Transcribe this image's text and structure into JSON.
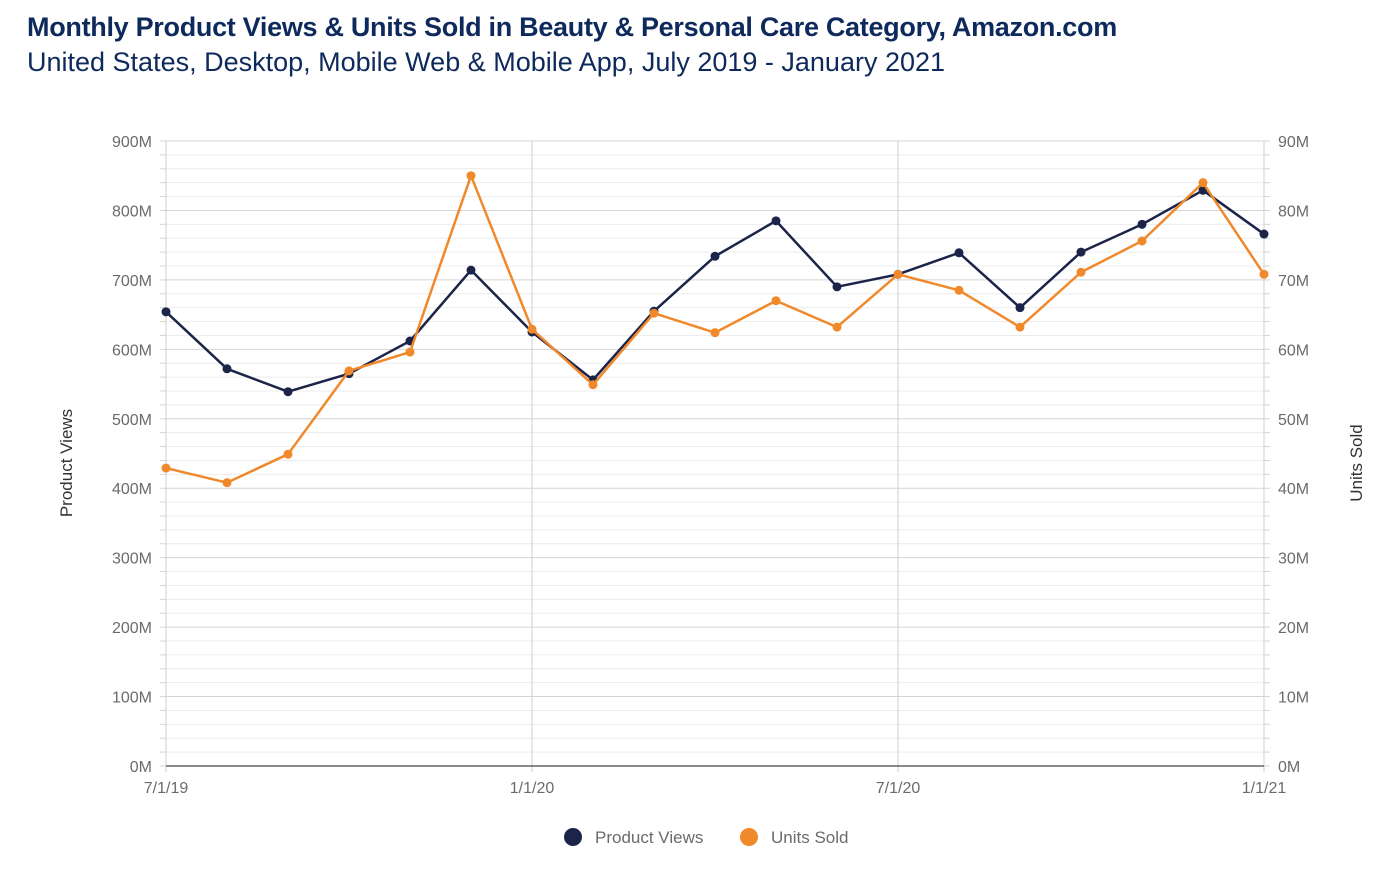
{
  "chart_data": {
    "type": "line",
    "title": "Monthly Product Views & Units Sold in Beauty & Personal Care Category, Amazon.com",
    "subtitle": "United States, Desktop, Mobile Web & Mobile App, July 2019 - January 2021",
    "xlabel": "",
    "ylabel": "Product Views",
    "y2label": "Units Sold",
    "x": [
      "2019-07",
      "2019-08",
      "2019-09",
      "2019-10",
      "2019-11",
      "2019-12",
      "2020-01",
      "2020-02",
      "2020-03",
      "2020-04",
      "2020-05",
      "2020-06",
      "2020-07",
      "2020-08",
      "2020-09",
      "2020-10",
      "2020-11",
      "2020-12",
      "2021-01"
    ],
    "x_ticks": [
      "7/1/19",
      "1/1/20",
      "7/1/20",
      "1/1/21"
    ],
    "ylim": [
      0,
      900
    ],
    "y_ticks": [
      "0M",
      "100M",
      "200M",
      "300M",
      "400M",
      "500M",
      "600M",
      "700M",
      "800M",
      "900M"
    ],
    "y2lim": [
      0,
      90
    ],
    "y2_ticks": [
      "0M",
      "10M",
      "20M",
      "30M",
      "40M",
      "50M",
      "60M",
      "70M",
      "80M",
      "90M"
    ],
    "grid": true,
    "legend_position": "bottom",
    "series": [
      {
        "name": "Product Views",
        "axis": "left",
        "color": "#1c2449",
        "values": [
          654,
          572,
          539,
          565,
          612,
          714,
          625,
          556,
          655,
          734,
          785,
          690,
          708,
          739,
          660,
          740,
          780,
          829,
          766
        ]
      },
      {
        "name": "Units Sold",
        "axis": "right",
        "color": "#f0892b",
        "values": [
          42.9,
          40.8,
          44.9,
          56.9,
          59.6,
          85.0,
          62.9,
          54.9,
          65.2,
          62.4,
          67.0,
          63.2,
          70.8,
          68.5,
          63.2,
          71.1,
          75.6,
          84.0,
          70.8
        ]
      }
    ]
  }
}
